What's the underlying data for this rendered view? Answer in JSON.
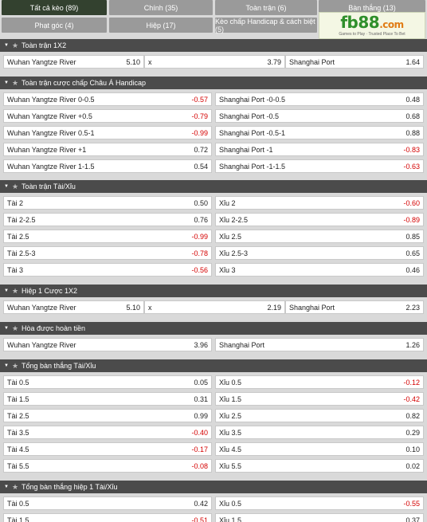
{
  "tabs": [
    {
      "label": "Tất cả kèo (89)",
      "active": true
    },
    {
      "label": "Chính (35)"
    },
    {
      "label": "Toàn trận (6)"
    },
    {
      "label": "Bàn thắng (13)"
    },
    {
      "label": "Phạt góc (4)"
    },
    {
      "label": "Hiệp (17)"
    },
    {
      "label": "Kèo chấp Handicap & cách biệt (5)"
    }
  ],
  "logo": {
    "main_a": "fb",
    "main_b": "88",
    "main_c": ".com",
    "tagline": "Games to Play · Trusted Place To Bet"
  },
  "sections": [
    {
      "title": "Toàn trận 1X2",
      "three_way": {
        "home": "Wuhan Yangtze River",
        "home_val": "5.10",
        "draw": "x",
        "draw_val": "3.79",
        "away": "Shanghai Port",
        "away_val": "1.64"
      }
    },
    {
      "title": "Toàn trận cược chấp Châu Á Handicap",
      "rows": [
        {
          "l": "Wuhan Yangtze River 0-0.5",
          "lv": "-0.57",
          "r": "Shanghai Port -0-0.5",
          "rv": "0.48"
        },
        {
          "l": "Wuhan Yangtze River +0.5",
          "lv": "-0.79",
          "r": "Shanghai Port -0.5",
          "rv": "0.68"
        },
        {
          "l": "Wuhan Yangtze River 0.5-1",
          "lv": "-0.99",
          "r": "Shanghai Port -0.5-1",
          "rv": "0.88"
        },
        {
          "l": "Wuhan Yangtze River +1",
          "lv": "0.72",
          "r": "Shanghai Port -1",
          "rv": "-0.83"
        },
        {
          "l": "Wuhan Yangtze River 1-1.5",
          "lv": "0.54",
          "r": "Shanghai Port -1-1.5",
          "rv": "-0.63"
        }
      ]
    },
    {
      "title": "Toàn trận Tài/Xỉu",
      "rows": [
        {
          "l": "Tài 2",
          "lv": "0.50",
          "r": "Xỉu 2",
          "rv": "-0.60"
        },
        {
          "l": "Tài 2-2.5",
          "lv": "0.76",
          "r": "Xỉu 2-2.5",
          "rv": "-0.89"
        },
        {
          "l": "Tài 2.5",
          "lv": "-0.99",
          "r": "Xỉu 2.5",
          "rv": "0.85"
        },
        {
          "l": "Tài 2.5-3",
          "lv": "-0.78",
          "r": "Xỉu 2.5-3",
          "rv": "0.65"
        },
        {
          "l": "Tài 3",
          "lv": "-0.56",
          "r": "Xỉu 3",
          "rv": "0.46"
        }
      ]
    },
    {
      "title": "Hiệp 1 Cược 1X2",
      "three_way": {
        "home": "Wuhan Yangtze River",
        "home_val": "5.10",
        "draw": "x",
        "draw_val": "2.19",
        "away": "Shanghai Port",
        "away_val": "2.23"
      }
    },
    {
      "title": "Hòa được hoàn tiền",
      "rows": [
        {
          "l": "Wuhan Yangtze River",
          "lv": "3.96",
          "r": "Shanghai Port",
          "rv": "1.26"
        }
      ]
    },
    {
      "title": "Tổng bàn thắng Tài/Xỉu",
      "rows": [
        {
          "l": "Tài 0.5",
          "lv": "0.05",
          "r": "Xỉu 0.5",
          "rv": "-0.12"
        },
        {
          "l": "Tài 1.5",
          "lv": "0.31",
          "r": "Xỉu 1.5",
          "rv": "-0.42"
        },
        {
          "l": "Tài 2.5",
          "lv": "0.99",
          "r": "Xỉu 2.5",
          "rv": "0.82"
        },
        {
          "l": "Tài 3.5",
          "lv": "-0.40",
          "r": "Xỉu 3.5",
          "rv": "0.29"
        },
        {
          "l": "Tài 4.5",
          "lv": "-0.17",
          "r": "Xỉu 4.5",
          "rv": "0.10"
        },
        {
          "l": "Tài 5.5",
          "lv": "-0.08",
          "r": "Xỉu 5.5",
          "rv": "0.02"
        }
      ]
    },
    {
      "title": "Tổng bàn thắng hiệp 1 Tài/Xỉu",
      "rows": [
        {
          "l": "Tài 0.5",
          "lv": "0.42",
          "r": "Xỉu 0.5",
          "rv": "-0.55"
        },
        {
          "l": "Tài 1.5",
          "lv": "-0.51",
          "r": "Xỉu 1.5",
          "rv": "0.37"
        }
      ]
    }
  ]
}
